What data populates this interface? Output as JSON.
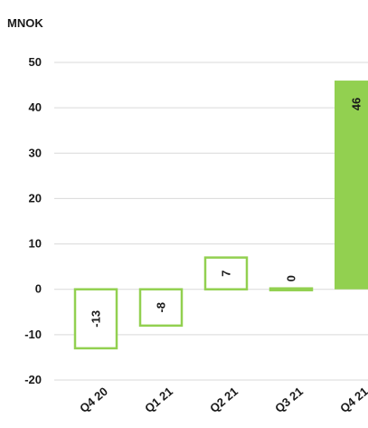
{
  "chart_data": {
    "type": "bar",
    "unit_label": "MNOK",
    "categories": [
      "Q4 20",
      "Q1 21",
      "Q2 21",
      "Q3 21",
      "Q4 21"
    ],
    "values": [
      -13,
      -8,
      7,
      0,
      46
    ],
    "data_labels": [
      "-13",
      "-8",
      "7",
      "0",
      "46"
    ],
    "ylim": [
      -20,
      50
    ],
    "yticks": [
      50,
      40,
      30,
      20,
      10,
      0,
      -10,
      -20
    ],
    "grid": true,
    "bar_styles": [
      "outline",
      "outline",
      "outline",
      "outline",
      "filled"
    ],
    "colors": {
      "accent": "#92d050",
      "bar_fill": "#92d050",
      "bar_outline": "#92d050",
      "outline_fill": "#ffffff",
      "grid": "#d9d9d9",
      "text": "#1a1a1a"
    }
  }
}
